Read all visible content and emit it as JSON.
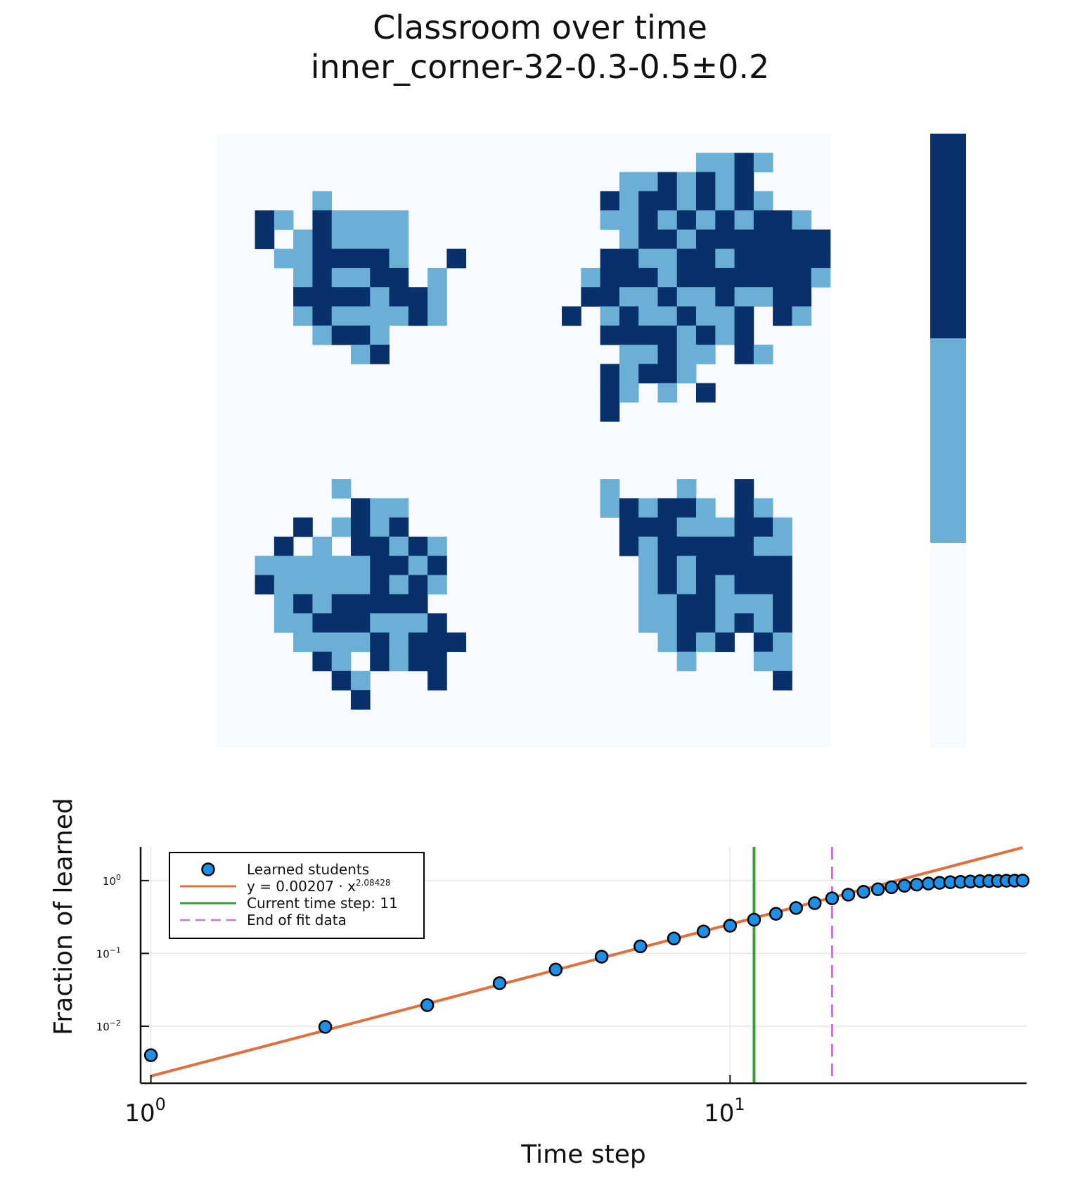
{
  "chart_data": [
    {
      "type": "heatmap",
      "title": "Classroom over time",
      "subtitle": "inner_corner-32-0.3-0.5±0.2",
      "grid_size": 32,
      "legend": "colorbar-right",
      "colorbar_levels": [
        "#08306b",
        "#6baed6",
        "#f7fbff"
      ],
      "colors": {
        "0": "#f7fbff",
        "1": "#6baed6",
        "2": "#08306b"
      },
      "cells": [
        [
          0,
          0,
          0,
          0,
          0,
          0,
          0,
          0,
          0,
          0,
          0,
          0,
          0,
          0,
          0,
          0,
          0,
          0,
          0,
          0,
          0,
          0,
          0,
          0,
          0,
          0,
          0,
          0,
          0,
          0,
          0,
          0
        ],
        [
          0,
          0,
          0,
          0,
          0,
          0,
          0,
          0,
          0,
          0,
          0,
          0,
          0,
          0,
          0,
          0,
          0,
          0,
          0,
          0,
          0,
          0,
          0,
          0,
          0,
          1,
          1,
          2,
          1,
          0,
          0,
          0
        ],
        [
          0,
          0,
          0,
          0,
          0,
          0,
          0,
          0,
          0,
          0,
          0,
          0,
          0,
          0,
          0,
          0,
          0,
          0,
          0,
          0,
          0,
          1,
          1,
          2,
          1,
          2,
          1,
          2,
          0,
          0,
          0,
          0
        ],
        [
          0,
          0,
          0,
          0,
          0,
          1,
          0,
          0,
          0,
          0,
          0,
          0,
          0,
          0,
          0,
          0,
          0,
          0,
          0,
          0,
          2,
          1,
          2,
          2,
          1,
          2,
          1,
          2,
          1,
          0,
          0,
          0
        ],
        [
          0,
          0,
          2,
          1,
          0,
          2,
          1,
          1,
          1,
          1,
          0,
          0,
          0,
          0,
          0,
          0,
          0,
          0,
          0,
          0,
          1,
          1,
          2,
          1,
          2,
          1,
          2,
          1,
          2,
          2,
          1,
          0
        ],
        [
          0,
          0,
          2,
          0,
          1,
          2,
          1,
          1,
          1,
          1,
          0,
          0,
          0,
          0,
          0,
          0,
          0,
          0,
          0,
          0,
          0,
          1,
          2,
          2,
          1,
          2,
          2,
          2,
          2,
          2,
          2,
          2
        ],
        [
          0,
          0,
          0,
          1,
          1,
          2,
          2,
          2,
          2,
          1,
          0,
          0,
          2,
          0,
          0,
          0,
          0,
          0,
          0,
          0,
          2,
          2,
          1,
          1,
          2,
          2,
          1,
          2,
          2,
          2,
          2,
          2
        ],
        [
          0,
          0,
          0,
          0,
          1,
          2,
          1,
          1,
          2,
          2,
          0,
          1,
          0,
          0,
          0,
          0,
          0,
          0,
          0,
          1,
          2,
          2,
          2,
          1,
          2,
          2,
          2,
          2,
          2,
          2,
          2,
          1
        ],
        [
          0,
          0,
          0,
          0,
          2,
          2,
          2,
          2,
          1,
          2,
          2,
          1,
          0,
          0,
          0,
          0,
          0,
          0,
          0,
          2,
          2,
          1,
          1,
          2,
          1,
          1,
          2,
          1,
          1,
          2,
          2,
          0
        ],
        [
          0,
          0,
          0,
          0,
          1,
          2,
          1,
          1,
          1,
          1,
          2,
          1,
          0,
          0,
          0,
          0,
          0,
          0,
          2,
          0,
          1,
          2,
          1,
          1,
          2,
          1,
          1,
          2,
          0,
          2,
          1,
          0
        ],
        [
          0,
          0,
          0,
          0,
          0,
          1,
          2,
          2,
          1,
          0,
          0,
          0,
          0,
          0,
          0,
          0,
          0,
          0,
          0,
          0,
          2,
          2,
          2,
          2,
          1,
          2,
          1,
          2,
          0,
          0,
          0,
          0
        ],
        [
          0,
          0,
          0,
          0,
          0,
          0,
          0,
          1,
          2,
          0,
          0,
          0,
          0,
          0,
          0,
          0,
          0,
          0,
          0,
          0,
          0,
          1,
          1,
          2,
          1,
          1,
          0,
          2,
          1,
          0,
          0,
          0
        ],
        [
          0,
          0,
          0,
          0,
          0,
          0,
          0,
          0,
          0,
          0,
          0,
          0,
          0,
          0,
          0,
          0,
          0,
          0,
          0,
          0,
          2,
          1,
          2,
          2,
          1,
          0,
          0,
          0,
          0,
          0,
          0,
          0
        ],
        [
          0,
          0,
          0,
          0,
          0,
          0,
          0,
          0,
          0,
          0,
          0,
          0,
          0,
          0,
          0,
          0,
          0,
          0,
          0,
          0,
          2,
          1,
          0,
          1,
          0,
          2,
          0,
          0,
          0,
          0,
          0,
          0
        ],
        [
          0,
          0,
          0,
          0,
          0,
          0,
          0,
          0,
          0,
          0,
          0,
          0,
          0,
          0,
          0,
          0,
          0,
          0,
          0,
          0,
          2,
          0,
          0,
          0,
          0,
          0,
          0,
          0,
          0,
          0,
          0,
          0
        ],
        [
          0,
          0,
          0,
          0,
          0,
          0,
          0,
          0,
          0,
          0,
          0,
          0,
          0,
          0,
          0,
          0,
          0,
          0,
          0,
          0,
          0,
          0,
          0,
          0,
          0,
          0,
          0,
          0,
          0,
          0,
          0,
          0
        ],
        [
          0,
          0,
          0,
          0,
          0,
          0,
          0,
          0,
          0,
          0,
          0,
          0,
          0,
          0,
          0,
          0,
          0,
          0,
          0,
          0,
          0,
          0,
          0,
          0,
          0,
          0,
          0,
          0,
          0,
          0,
          0,
          0
        ],
        [
          0,
          0,
          0,
          0,
          0,
          0,
          0,
          0,
          0,
          0,
          0,
          0,
          0,
          0,
          0,
          0,
          0,
          0,
          0,
          0,
          0,
          0,
          0,
          0,
          0,
          0,
          0,
          0,
          0,
          0,
          0,
          0
        ],
        [
          0,
          0,
          0,
          0,
          0,
          0,
          1,
          0,
          0,
          0,
          0,
          0,
          0,
          0,
          0,
          0,
          0,
          0,
          0,
          0,
          1,
          0,
          0,
          0,
          1,
          0,
          0,
          2,
          0,
          0,
          0,
          0
        ],
        [
          0,
          0,
          0,
          0,
          0,
          0,
          0,
          2,
          1,
          1,
          0,
          0,
          0,
          0,
          0,
          0,
          0,
          0,
          0,
          0,
          1,
          2,
          1,
          2,
          2,
          1,
          0,
          2,
          1,
          0,
          0,
          0
        ],
        [
          0,
          0,
          0,
          0,
          2,
          0,
          1,
          2,
          1,
          2,
          0,
          0,
          0,
          0,
          0,
          0,
          0,
          0,
          0,
          0,
          0,
          2,
          2,
          2,
          1,
          1,
          1,
          2,
          2,
          1,
          0,
          0
        ],
        [
          0,
          0,
          0,
          2,
          0,
          1,
          0,
          2,
          2,
          1,
          2,
          1,
          0,
          0,
          0,
          0,
          0,
          0,
          0,
          0,
          0,
          2,
          1,
          2,
          2,
          2,
          2,
          2,
          1,
          1,
          0,
          0
        ],
        [
          0,
          0,
          1,
          1,
          1,
          1,
          1,
          1,
          2,
          2,
          1,
          2,
          0,
          0,
          0,
          0,
          0,
          0,
          0,
          0,
          0,
          0,
          1,
          2,
          1,
          2,
          2,
          2,
          2,
          2,
          0,
          0
        ],
        [
          0,
          0,
          2,
          1,
          1,
          1,
          1,
          1,
          2,
          1,
          2,
          1,
          0,
          0,
          0,
          0,
          0,
          0,
          0,
          0,
          0,
          0,
          1,
          2,
          1,
          2,
          1,
          2,
          2,
          2,
          0,
          0
        ],
        [
          0,
          0,
          0,
          1,
          2,
          1,
          2,
          2,
          2,
          2,
          2,
          0,
          0,
          0,
          0,
          0,
          0,
          0,
          0,
          0,
          0,
          0,
          1,
          1,
          2,
          2,
          1,
          1,
          1,
          2,
          0,
          0
        ],
        [
          0,
          0,
          0,
          1,
          1,
          2,
          2,
          2,
          1,
          1,
          1,
          2,
          0,
          0,
          0,
          0,
          0,
          0,
          0,
          0,
          0,
          0,
          1,
          1,
          2,
          2,
          1,
          2,
          1,
          2,
          0,
          0
        ],
        [
          0,
          0,
          0,
          0,
          1,
          1,
          1,
          1,
          2,
          1,
          2,
          2,
          2,
          0,
          0,
          0,
          0,
          0,
          0,
          0,
          0,
          0,
          0,
          1,
          2,
          1,
          2,
          0,
          2,
          1,
          0,
          0
        ],
        [
          0,
          0,
          0,
          0,
          0,
          2,
          1,
          0,
          2,
          1,
          2,
          2,
          0,
          0,
          0,
          0,
          0,
          0,
          0,
          0,
          0,
          0,
          0,
          0,
          1,
          0,
          0,
          0,
          1,
          1,
          0,
          0
        ],
        [
          0,
          0,
          0,
          0,
          0,
          0,
          2,
          1,
          0,
          0,
          0,
          2,
          0,
          0,
          0,
          0,
          0,
          0,
          0,
          0,
          0,
          0,
          0,
          0,
          0,
          0,
          0,
          0,
          0,
          2,
          0,
          0
        ],
        [
          0,
          0,
          0,
          0,
          0,
          0,
          0,
          2,
          0,
          0,
          0,
          0,
          0,
          0,
          0,
          0,
          0,
          0,
          0,
          0,
          0,
          0,
          0,
          0,
          0,
          0,
          0,
          0,
          0,
          0,
          0,
          0
        ],
        [
          0,
          0,
          0,
          0,
          0,
          0,
          0,
          0,
          0,
          0,
          0,
          0,
          0,
          0,
          0,
          0,
          0,
          0,
          0,
          0,
          0,
          0,
          0,
          0,
          0,
          0,
          0,
          0,
          0,
          0,
          0,
          0
        ],
        [
          0,
          0,
          0,
          0,
          0,
          0,
          0,
          0,
          0,
          0,
          0,
          0,
          0,
          0,
          0,
          0,
          0,
          0,
          0,
          0,
          0,
          0,
          0,
          0,
          0,
          0,
          0,
          0,
          0,
          0,
          0,
          0
        ]
      ]
    },
    {
      "type": "scatter",
      "xlabel": "Time step",
      "ylabel": "Fraction of learned",
      "xscale": "log",
      "yscale": "log",
      "xlim": [
        0.96,
        32.5
      ],
      "ylim": [
        0.00165,
        2.9
      ],
      "grid": true,
      "legend": "top-left",
      "x_ticks": [
        {
          "value": 1,
          "base": "10",
          "exp": "0"
        },
        {
          "value": 10,
          "base": "10",
          "exp": "1"
        }
      ],
      "y_ticks": [
        {
          "value": 1,
          "base": "10",
          "exp": "0"
        },
        {
          "value": 0.1,
          "base": "10",
          "exp": "−1"
        },
        {
          "value": 0.01,
          "base": "10",
          "exp": "−2"
        }
      ],
      "series": [
        {
          "name": "Learned students",
          "kind": "scatter",
          "color": "#1e90e6",
          "x": [
            1,
            2,
            3,
            4,
            5,
            6,
            7,
            8,
            9,
            10,
            11,
            12,
            13,
            14,
            15,
            16,
            17,
            18,
            19,
            20,
            21,
            22,
            23,
            24,
            25,
            26,
            27,
            28,
            29,
            30,
            31,
            32
          ],
          "y": [
            0.004,
            0.0098,
            0.0195,
            0.039,
            0.06,
            0.09,
            0.125,
            0.16,
            0.2,
            0.24,
            0.29,
            0.35,
            0.42,
            0.49,
            0.57,
            0.64,
            0.7,
            0.76,
            0.81,
            0.85,
            0.88,
            0.91,
            0.93,
            0.95,
            0.96,
            0.97,
            0.98,
            0.985,
            0.99,
            0.995,
            0.998,
            1.0
          ]
        },
        {
          "name_base": "y = 0.00207 · x",
          "name_exp": "2.08428",
          "kind": "fit-line",
          "color": "#e0703c",
          "coefficient": 0.00207,
          "exponent": 2.08428,
          "x_range": [
            1,
            32
          ]
        },
        {
          "name": "Current time step: 11",
          "kind": "vline",
          "color": "#3a9e3a",
          "x": 11
        },
        {
          "name": "End of fit data",
          "kind": "vline-dashed",
          "color": "#c07ad0",
          "x": 15
        }
      ]
    }
  ]
}
